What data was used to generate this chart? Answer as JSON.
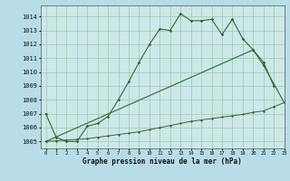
{
  "title": "Graphe pression niveau de la mer (hPa)",
  "bg_color": "#b8dde8",
  "plot_bg_color": "#cce8e8",
  "line_color": "#2d6b2d",
  "grid_color": "#99bbaa",
  "xlim": [
    -0.5,
    23
  ],
  "ylim": [
    1004.5,
    1014.8
  ],
  "yticks": [
    1005,
    1006,
    1007,
    1008,
    1009,
    1010,
    1011,
    1012,
    1013,
    1014
  ],
  "xticks": [
    0,
    1,
    2,
    3,
    4,
    5,
    6,
    7,
    8,
    9,
    10,
    11,
    12,
    13,
    14,
    15,
    16,
    17,
    18,
    19,
    20,
    21,
    22,
    23
  ],
  "line1_y": [
    1007.0,
    1005.3,
    1005.0,
    1005.0,
    1006.1,
    1006.3,
    1006.8,
    1008.0,
    1009.3,
    1010.7,
    1012.0,
    1013.1,
    1013.0,
    1014.2,
    1013.7,
    1013.7,
    1013.8,
    1012.7,
    1013.8,
    1012.4,
    1011.6,
    1010.7,
    1009.0,
    null
  ],
  "line2_y": [
    1005.0,
    null,
    null,
    null,
    null,
    null,
    null,
    null,
    null,
    null,
    null,
    null,
    null,
    null,
    null,
    null,
    null,
    null,
    null,
    null,
    1011.6,
    1010.5,
    null,
    1007.8
  ],
  "line3_y": [
    1005.0,
    1005.05,
    1005.1,
    1005.15,
    1005.2,
    1005.3,
    1005.4,
    1005.5,
    1005.6,
    1005.7,
    1005.85,
    1006.0,
    1006.15,
    1006.3,
    1006.45,
    1006.55,
    1006.65,
    1006.75,
    1006.85,
    1006.95,
    1007.1,
    1007.2,
    1007.5,
    1007.8
  ]
}
